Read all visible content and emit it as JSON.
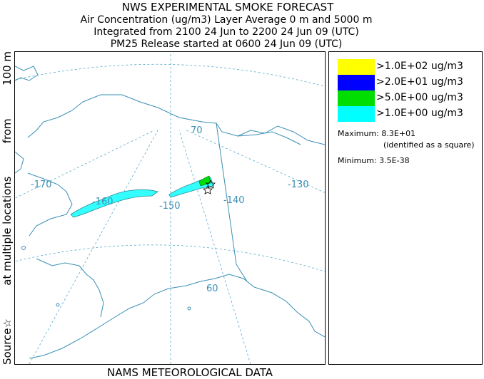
{
  "header": {
    "title": "NWS EXPERIMENTAL SMOKE FORECAST",
    "line2": "Air Concentration (ug/m3) Layer Average    0 m and  5000 m",
    "line3": "Integrated from 2100 24 Jun to 2200 24 Jun 09 (UTC)",
    "line4": "PM25 Release started at 0600 24 Jun 09 (UTC)"
  },
  "side_label": {
    "part1": "Source☆",
    "part2": "at multiple locations",
    "part3": "from",
    "part4": "100 m"
  },
  "map": {
    "longitude_labels": [
      "-170",
      "-160",
      "-150",
      "-140",
      "-130"
    ],
    "latitude_labels": [
      "70",
      "60"
    ],
    "colors": {
      "coast": "#3a8fb5",
      "grid": "#5aa9cc",
      "smoke_low": "#33ffff",
      "smoke_mid": "#00dd00",
      "source_marker": "#000000"
    }
  },
  "legend": {
    "items": [
      {
        "label": ">1.0E+02 ug/m3",
        "color": "#ffff00"
      },
      {
        "label": ">2.0E+01 ug/m3",
        "color": "#0000ff"
      },
      {
        "label": ">5.0E+00 ug/m3",
        "color": "#00dd00"
      },
      {
        "label": ">1.0E+00 ug/m3",
        "color": "#00ffff"
      }
    ],
    "maximum": "Maximum: 8.3E+01",
    "maximum_note": "(identified as a square)",
    "minimum": "Minimum: 3.5E-38"
  },
  "footer": "NAMS METEOROLOGICAL DATA"
}
